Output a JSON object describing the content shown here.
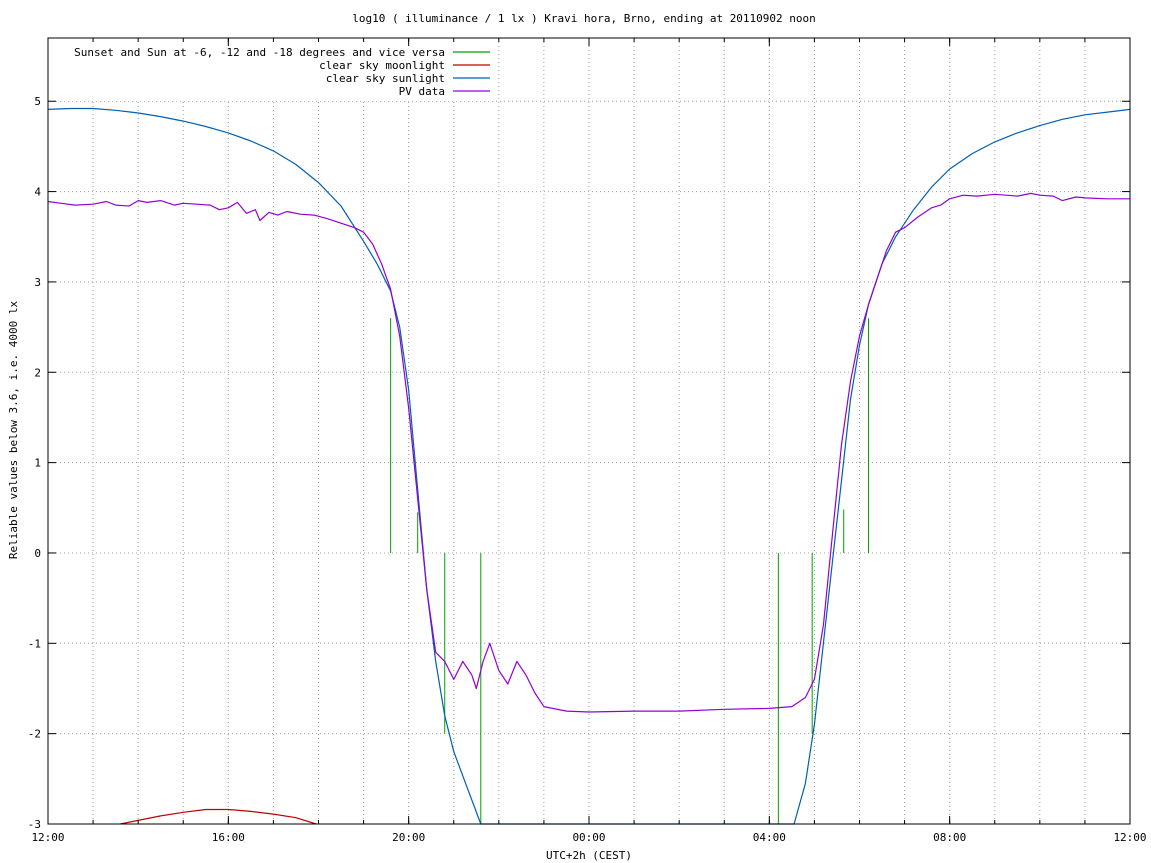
{
  "chart_data": {
    "type": "line",
    "title": "log10 ( illuminance / 1 lx ) Kravi hora, Brno, ending at 20110902 noon",
    "xlabel": "UTC+2h (CEST)",
    "ylabel": "Reliable values below 3.6, i.e. 4000 lx",
    "x_unit": "hours since 12:00 (CEST), 2011-09-01",
    "xlim": [
      0,
      24
    ],
    "ylim": [
      -3,
      5.7
    ],
    "x_ticks": [
      {
        "x": 0,
        "label": "12:00"
      },
      {
        "x": 4,
        "label": "16:00"
      },
      {
        "x": 8,
        "label": "20:00"
      },
      {
        "x": 12,
        "label": "00:00"
      },
      {
        "x": 16,
        "label": "04:00"
      },
      {
        "x": 20,
        "label": "08:00"
      },
      {
        "x": 24,
        "label": "12:00"
      }
    ],
    "y_ticks": [
      {
        "y": 5,
        "label": "5"
      },
      {
        "y": 4,
        "label": "4"
      },
      {
        "y": 3,
        "label": "3"
      },
      {
        "y": 2,
        "label": "2"
      },
      {
        "y": 1,
        "label": "1"
      },
      {
        "y": 0,
        "label": "0"
      },
      {
        "y": -1,
        "label": "-1"
      },
      {
        "y": -2,
        "label": "-2"
      },
      {
        "y": -3,
        "label": "-3"
      }
    ],
    "grid": true,
    "legend_position": "top-left",
    "series": [
      {
        "name": "Sunset and Sun at -6, -12 and -18 degrees and vice versa",
        "color": "#00a000",
        "kind": "vertical-lines",
        "lines": [
          {
            "x": 7.6,
            "y": [
              0,
              2.6
            ]
          },
          {
            "x": 8.2,
            "y": [
              0,
              0.45
            ]
          },
          {
            "x": 8.8,
            "y": [
              -2.0,
              0
            ]
          },
          {
            "x": 9.6,
            "y": [
              -3.0,
              0
            ]
          },
          {
            "x": 16.2,
            "y": [
              -3.0,
              0
            ]
          },
          {
            "x": 16.95,
            "y": [
              -2.0,
              0
            ]
          },
          {
            "x": 17.65,
            "y": [
              0,
              0.48
            ]
          },
          {
            "x": 18.2,
            "y": [
              0,
              2.6
            ]
          }
        ]
      },
      {
        "name": "clear sky moonlight",
        "color": "#c00000",
        "points": [
          [
            1.6,
            -3.0
          ],
          [
            2.0,
            -2.96
          ],
          [
            2.5,
            -2.91
          ],
          [
            3.0,
            -2.87
          ],
          [
            3.5,
            -2.84
          ],
          [
            4.0,
            -2.84
          ],
          [
            4.5,
            -2.86
          ],
          [
            5.0,
            -2.89
          ],
          [
            5.5,
            -2.93
          ],
          [
            5.95,
            -3.0
          ]
        ]
      },
      {
        "name": "clear sky sunlight",
        "color": "#0060b0",
        "points": [
          [
            0,
            4.91
          ],
          [
            0.5,
            4.92
          ],
          [
            1.0,
            4.92
          ],
          [
            1.5,
            4.9
          ],
          [
            2.0,
            4.87
          ],
          [
            2.5,
            4.83
          ],
          [
            3.0,
            4.78
          ],
          [
            3.5,
            4.72
          ],
          [
            4.0,
            4.65
          ],
          [
            4.5,
            4.56
          ],
          [
            5.0,
            4.45
          ],
          [
            5.5,
            4.3
          ],
          [
            6.0,
            4.1
          ],
          [
            6.5,
            3.84
          ],
          [
            7.0,
            3.45
          ],
          [
            7.3,
            3.2
          ],
          [
            7.6,
            2.9
          ],
          [
            7.8,
            2.5
          ],
          [
            8.0,
            1.8
          ],
          [
            8.2,
            0.7
          ],
          [
            8.4,
            -0.4
          ],
          [
            8.6,
            -1.2
          ],
          [
            8.8,
            -1.8
          ],
          [
            9.0,
            -2.2
          ],
          [
            9.3,
            -2.6
          ],
          [
            9.6,
            -3.0
          ],
          [
            16.55,
            -3.0
          ],
          [
            16.8,
            -2.55
          ],
          [
            17.0,
            -1.9
          ],
          [
            17.2,
            -1.0
          ],
          [
            17.4,
            -0.1
          ],
          [
            17.6,
            0.8
          ],
          [
            17.8,
            1.7
          ],
          [
            18.0,
            2.3
          ],
          [
            18.2,
            2.75
          ],
          [
            18.5,
            3.2
          ],
          [
            18.8,
            3.5
          ],
          [
            19.2,
            3.8
          ],
          [
            19.6,
            4.05
          ],
          [
            20.0,
            4.25
          ],
          [
            20.5,
            4.42
          ],
          [
            21.0,
            4.55
          ],
          [
            21.5,
            4.65
          ],
          [
            22.0,
            4.73
          ],
          [
            22.5,
            4.8
          ],
          [
            23.0,
            4.85
          ],
          [
            23.5,
            4.88
          ],
          [
            24.0,
            4.91
          ]
        ]
      },
      {
        "name": "PV data",
        "color": "#9400d3",
        "points": [
          [
            0,
            3.89
          ],
          [
            0.3,
            3.87
          ],
          [
            0.6,
            3.85
          ],
          [
            1.0,
            3.86
          ],
          [
            1.3,
            3.89
          ],
          [
            1.5,
            3.85
          ],
          [
            1.8,
            3.84
          ],
          [
            2.0,
            3.9
          ],
          [
            2.2,
            3.88
          ],
          [
            2.5,
            3.9
          ],
          [
            2.8,
            3.85
          ],
          [
            3.0,
            3.87
          ],
          [
            3.3,
            3.86
          ],
          [
            3.6,
            3.85
          ],
          [
            3.8,
            3.8
          ],
          [
            4.0,
            3.82
          ],
          [
            4.2,
            3.88
          ],
          [
            4.4,
            3.76
          ],
          [
            4.6,
            3.8
          ],
          [
            4.7,
            3.68
          ],
          [
            4.9,
            3.77
          ],
          [
            5.1,
            3.74
          ],
          [
            5.3,
            3.78
          ],
          [
            5.6,
            3.75
          ],
          [
            5.9,
            3.74
          ],
          [
            6.2,
            3.7
          ],
          [
            6.5,
            3.65
          ],
          [
            6.8,
            3.6
          ],
          [
            7.0,
            3.55
          ],
          [
            7.2,
            3.42
          ],
          [
            7.4,
            3.2
          ],
          [
            7.6,
            2.92
          ],
          [
            7.8,
            2.4
          ],
          [
            8.0,
            1.6
          ],
          [
            8.2,
            0.6
          ],
          [
            8.4,
            -0.4
          ],
          [
            8.6,
            -1.1
          ],
          [
            8.8,
            -1.2
          ],
          [
            9.0,
            -1.4
          ],
          [
            9.2,
            -1.2
          ],
          [
            9.4,
            -1.35
          ],
          [
            9.5,
            -1.5
          ],
          [
            9.65,
            -1.2
          ],
          [
            9.8,
            -1.0
          ],
          [
            10.0,
            -1.3
          ],
          [
            10.2,
            -1.45
          ],
          [
            10.4,
            -1.2
          ],
          [
            10.6,
            -1.35
          ],
          [
            10.8,
            -1.55
          ],
          [
            11.0,
            -1.7
          ],
          [
            11.5,
            -1.75
          ],
          [
            12.0,
            -1.76
          ],
          [
            13.0,
            -1.75
          ],
          [
            14.0,
            -1.75
          ],
          [
            15.0,
            -1.73
          ],
          [
            16.0,
            -1.72
          ],
          [
            16.5,
            -1.7
          ],
          [
            16.8,
            -1.6
          ],
          [
            17.0,
            -1.4
          ],
          [
            17.2,
            -0.8
          ],
          [
            17.4,
            0.2
          ],
          [
            17.6,
            1.2
          ],
          [
            17.8,
            1.9
          ],
          [
            18.0,
            2.4
          ],
          [
            18.2,
            2.75
          ],
          [
            18.4,
            3.05
          ],
          [
            18.6,
            3.35
          ],
          [
            18.8,
            3.55
          ],
          [
            19.0,
            3.6
          ],
          [
            19.3,
            3.72
          ],
          [
            19.6,
            3.82
          ],
          [
            19.8,
            3.85
          ],
          [
            20.0,
            3.92
          ],
          [
            20.3,
            3.96
          ],
          [
            20.6,
            3.95
          ],
          [
            21.0,
            3.97
          ],
          [
            21.5,
            3.95
          ],
          [
            21.8,
            3.98
          ],
          [
            22.0,
            3.96
          ],
          [
            22.3,
            3.95
          ],
          [
            22.5,
            3.9
          ],
          [
            22.8,
            3.94
          ],
          [
            23.0,
            3.93
          ],
          [
            23.5,
            3.92
          ],
          [
            24.0,
            3.92
          ]
        ]
      }
    ]
  }
}
